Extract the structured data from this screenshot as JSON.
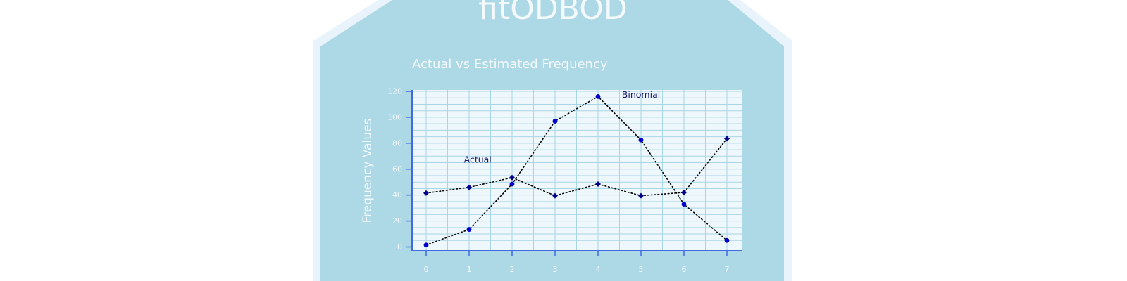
{
  "package_title": "fitODBOD",
  "colors": {
    "panel": "#add8e6",
    "panel_border": "#e8f3fb",
    "plot_bg": "#eef7fb",
    "grid": "#a9d6e5",
    "axis": "#4169e1",
    "series_marker": "#00008b",
    "series_marker_alt": "#0000cd",
    "light_text": "#f4f9fc",
    "annotation_text": "#191970"
  },
  "chart_data": {
    "type": "line",
    "title": "Actual vs Estimated Frequency",
    "xlabel": "",
    "ylabel": "Frequency Values",
    "x": [
      0,
      1,
      2,
      3,
      4,
      5,
      6,
      7
    ],
    "xlim": [
      0,
      7
    ],
    "ylim": [
      0,
      120
    ],
    "yticks": [
      0,
      20,
      40,
      60,
      80,
      100,
      120
    ],
    "grid": true,
    "series": [
      {
        "name": "Actual",
        "marker": "diamond",
        "line_style": "dotted",
        "values": [
          41.5,
          46,
          53.5,
          39.5,
          48.5,
          39.5,
          42,
          83.5
        ]
      },
      {
        "name": "Binomial",
        "marker": "circle",
        "line_style": "dotted",
        "values": [
          1.5,
          13.5,
          48.5,
          97,
          116,
          82.5,
          33,
          5
        ]
      }
    ],
    "annotations": [
      {
        "text": "Actual",
        "x": 1.2,
        "y": 65
      },
      {
        "text": "Binomial",
        "x": 5,
        "y": 115
      }
    ]
  }
}
